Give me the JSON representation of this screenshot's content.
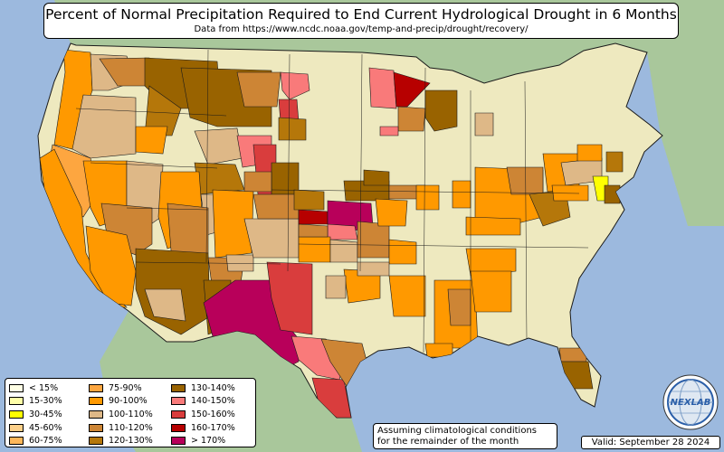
{
  "title": "Percent of Normal Precipitation Required to End Current Hydrological Drought in 6 Months",
  "subtitle": "Data from https://www.ncdc.noaa.gov/temp-and-precip/drought/recovery/",
  "legend": {
    "items": [
      {
        "label": "< 15%",
        "color": "#ffffe5"
      },
      {
        "label": "15-30%",
        "color": "#ffffa8"
      },
      {
        "label": "30-45%",
        "color": "#ffff00"
      },
      {
        "label": "45-60%",
        "color": "#fcd08a"
      },
      {
        "label": "60-75%",
        "color": "#fdb75a"
      },
      {
        "label": "75-90%",
        "color": "#fda640"
      },
      {
        "label": "90-100%",
        "color": "#ff9900"
      },
      {
        "label": "100-110%",
        "color": "#deb887"
      },
      {
        "label": "110-120%",
        "color": "#cd8535"
      },
      {
        "label": "120-130%",
        "color": "#b5770a"
      },
      {
        "label": "130-140%",
        "color": "#996300"
      },
      {
        "label": "140-150%",
        "color": "#f97a7a"
      },
      {
        "label": "150-160%",
        "color": "#d93d3d"
      },
      {
        "label": "160-170%",
        "color": "#b70000"
      },
      {
        "label": "> 170%",
        "color": "#b8005a"
      }
    ]
  },
  "note": {
    "line1": "Assuming climatological conditions",
    "line2": "for the remainder of the month"
  },
  "valid": "Valid: September 28 2024",
  "logo": {
    "text": "NEXLAB",
    "icon": "nexlab-globe-icon"
  },
  "colors": {
    "ocean": "#9cb9de",
    "land_us": "#eee9bf",
    "land_foreign": "#a9c79b",
    "border": "#1a1a1a"
  }
}
